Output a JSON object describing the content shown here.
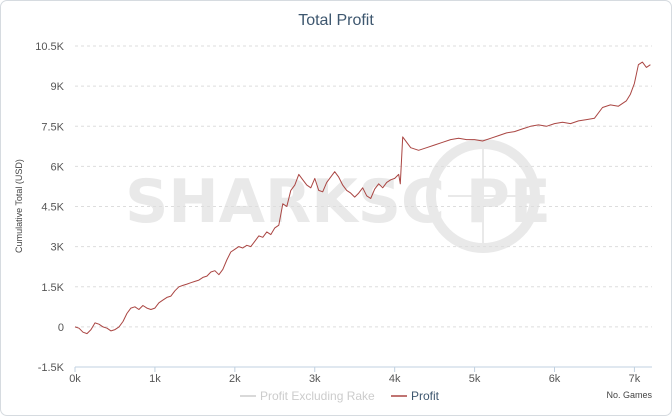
{
  "chart_data": {
    "type": "line",
    "title": "Total Profit",
    "xlabel": "No. Games",
    "ylabel": "Cumulative Total (USD)",
    "xlim": [
      0,
      7220
    ],
    "ylim": [
      -1500,
      10500
    ],
    "x_ticks": [
      0,
      1000,
      2000,
      3000,
      4000,
      5000,
      6000,
      7000
    ],
    "x_tick_labels": [
      "0k",
      "1k",
      "2k",
      "3k",
      "4k",
      "5k",
      "6k",
      "7k"
    ],
    "y_ticks": [
      -1500,
      0,
      1500,
      3000,
      4500,
      6000,
      7500,
      9000,
      10500
    ],
    "y_tick_labels": [
      "-1.5K",
      "0",
      "1.5K",
      "3K",
      "4.5K",
      "6K",
      "7.5K",
      "9K",
      "10.5K"
    ],
    "grid": true,
    "legend_position": "bottom-center",
    "watermark": "SHARKSCOPE",
    "series": [
      {
        "name": "Profit Excluding Rake",
        "color": "#cccccc",
        "x": [],
        "values": []
      },
      {
        "name": "Profit",
        "color": "#aa4643",
        "x": [
          0,
          50,
          100,
          150,
          200,
          250,
          300,
          350,
          400,
          450,
          500,
          550,
          600,
          650,
          700,
          750,
          800,
          850,
          900,
          950,
          1000,
          1050,
          1100,
          1150,
          1200,
          1250,
          1300,
          1350,
          1400,
          1450,
          1500,
          1550,
          1600,
          1650,
          1700,
          1750,
          1800,
          1850,
          1900,
          1950,
          2000,
          2050,
          2100,
          2150,
          2200,
          2250,
          2300,
          2350,
          2400,
          2450,
          2500,
          2550,
          2600,
          2650,
          2700,
          2750,
          2800,
          2850,
          2900,
          2950,
          3000,
          3050,
          3100,
          3150,
          3200,
          3250,
          3300,
          3350,
          3400,
          3450,
          3500,
          3550,
          3600,
          3650,
          3700,
          3750,
          3800,
          3850,
          3900,
          3950,
          4000,
          4050,
          4070,
          4100,
          4150,
          4200,
          4300,
          4400,
          4500,
          4600,
          4700,
          4800,
          4900,
          5000,
          5100,
          5200,
          5300,
          5400,
          5500,
          5600,
          5700,
          5800,
          5900,
          6000,
          6100,
          6200,
          6300,
          6400,
          6500,
          6600,
          6700,
          6800,
          6900,
          6950,
          7000,
          7050,
          7100,
          7150,
          7200
        ],
        "values": [
          0,
          -50,
          -200,
          -250,
          -100,
          150,
          100,
          0,
          -50,
          -150,
          -100,
          0,
          200,
          500,
          700,
          750,
          650,
          800,
          700,
          650,
          700,
          900,
          1000,
          1100,
          1150,
          1350,
          1500,
          1550,
          1600,
          1650,
          1700,
          1750,
          1850,
          1900,
          2050,
          2100,
          1950,
          2150,
          2500,
          2800,
          2900,
          3000,
          2950,
          3050,
          3000,
          3200,
          3400,
          3350,
          3550,
          3450,
          3700,
          3800,
          4600,
          4500,
          5100,
          5300,
          5700,
          5500,
          5300,
          5200,
          5550,
          5100,
          5050,
          5400,
          5600,
          5800,
          5600,
          5300,
          5100,
          5000,
          4850,
          5000,
          5200,
          4900,
          4800,
          5150,
          5350,
          5200,
          5400,
          5500,
          5550,
          5700,
          5350,
          7100,
          6900,
          6700,
          6600,
          6700,
          6800,
          6900,
          7000,
          7050,
          7000,
          7000,
          6950,
          7050,
          7150,
          7250,
          7300,
          7400,
          7500,
          7550,
          7500,
          7600,
          7650,
          7600,
          7700,
          7750,
          7800,
          8200,
          8300,
          8250,
          8450,
          8700,
          9100,
          9800,
          9900,
          9700,
          9800
        ]
      }
    ]
  }
}
